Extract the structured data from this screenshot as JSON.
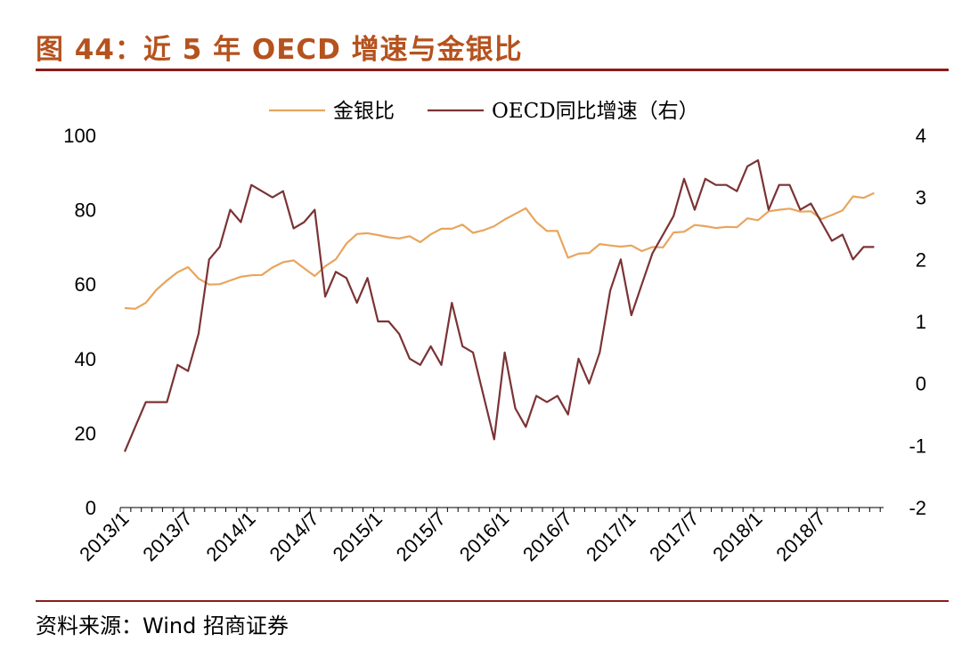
{
  "header": {
    "title": "图 44：近 5 年 OECD 增速与金银比"
  },
  "footer": {
    "source": "资料来源：Wind 招商证券"
  },
  "colors": {
    "title": "#b5521e",
    "rule": "#8b1c1c",
    "gold_silver": "#e8a55d",
    "oecd": "#7b3335"
  },
  "chart_data": {
    "type": "line",
    "title": "",
    "x_tick_labels": [
      "2013/1",
      "2013/7",
      "2014/1",
      "2014/7",
      "2015/1",
      "2015/7",
      "2016/1",
      "2016/7",
      "2017/1",
      "2017/7",
      "2018/1",
      "2018/7"
    ],
    "left_axis": {
      "ylim": [
        0,
        100
      ],
      "ticks": [
        "0",
        "20",
        "40",
        "60",
        "80",
        "100"
      ]
    },
    "right_axis": {
      "ylim": [
        -2,
        4
      ],
      "ticks": [
        "-2",
        "-1",
        "0",
        "1",
        "2",
        "3",
        "4"
      ]
    },
    "legend_position": "top-center",
    "series": [
      {
        "name": "金银比",
        "axis": "left",
        "x": [
          "2013/1",
          "2013/2",
          "2013/3",
          "2013/4",
          "2013/5",
          "2013/6",
          "2013/7",
          "2013/8",
          "2013/9",
          "2013/10",
          "2013/11",
          "2013/12",
          "2014/1",
          "2014/2",
          "2014/3",
          "2014/4",
          "2014/5",
          "2014/6",
          "2014/7",
          "2014/8",
          "2014/9",
          "2014/10",
          "2014/11",
          "2014/12",
          "2015/1",
          "2015/2",
          "2015/3",
          "2015/4",
          "2015/5",
          "2015/6",
          "2015/7",
          "2015/8",
          "2015/9",
          "2015/10",
          "2015/11",
          "2015/12",
          "2016/1",
          "2016/2",
          "2016/3",
          "2016/4",
          "2016/5",
          "2016/6",
          "2016/7",
          "2016/8",
          "2016/9",
          "2016/10",
          "2016/11",
          "2016/12",
          "2017/1",
          "2017/2",
          "2017/3",
          "2017/4",
          "2017/5",
          "2017/6",
          "2017/7",
          "2017/8",
          "2017/9",
          "2017/10",
          "2017/11",
          "2017/12",
          "2018/1",
          "2018/2",
          "2018/3",
          "2018/4",
          "2018/5",
          "2018/6",
          "2018/7",
          "2018/8",
          "2018/9",
          "2018/10",
          "2018/11",
          "2018/12"
        ],
        "values": [
          53.6,
          53.4,
          55.0,
          58.5,
          61.0,
          63.2,
          64.6,
          61.5,
          59.9,
          60.0,
          61.0,
          62.0,
          62.4,
          62.5,
          64.5,
          65.9,
          66.4,
          64.3,
          62.2,
          64.8,
          66.7,
          70.9,
          73.5,
          73.7,
          73.2,
          72.6,
          72.3,
          72.9,
          71.3,
          73.4,
          74.9,
          74.9,
          76.0,
          73.8,
          74.5,
          75.6,
          77.4,
          78.9,
          80.4,
          76.7,
          74.3,
          74.3,
          67.1,
          68.2,
          68.4,
          70.8,
          70.4,
          70.1,
          70.4,
          68.9,
          70.0,
          69.9,
          73.9,
          74.1,
          75.9,
          75.6,
          75.1,
          75.4,
          75.3,
          77.7,
          77.2,
          79.6,
          80.0,
          80.3,
          79.5,
          79.6,
          77.5,
          78.6,
          79.8,
          83.6,
          83.2,
          84.5
        ]
      },
      {
        "name": "OECD同比增速（右）",
        "axis": "right",
        "x": [
          "2013/1",
          "2013/2",
          "2013/3",
          "2013/4",
          "2013/5",
          "2013/6",
          "2013/7",
          "2013/8",
          "2013/9",
          "2013/10",
          "2013/11",
          "2013/12",
          "2014/1",
          "2014/2",
          "2014/3",
          "2014/4",
          "2014/5",
          "2014/6",
          "2014/7",
          "2014/8",
          "2014/9",
          "2014/10",
          "2014/11",
          "2014/12",
          "2015/1",
          "2015/2",
          "2015/3",
          "2015/4",
          "2015/5",
          "2015/6",
          "2015/7",
          "2015/8",
          "2015/9",
          "2015/10",
          "2015/11",
          "2015/12",
          "2016/1",
          "2016/2",
          "2016/3",
          "2016/4",
          "2016/5",
          "2016/6",
          "2016/7",
          "2016/8",
          "2016/9",
          "2016/10",
          "2016/11",
          "2016/12",
          "2017/1",
          "2017/2",
          "2017/3",
          "2017/4",
          "2017/5",
          "2017/6",
          "2017/7",
          "2017/8",
          "2017/9",
          "2017/10",
          "2017/11",
          "2017/12",
          "2018/1",
          "2018/2",
          "2018/3",
          "2018/4",
          "2018/5",
          "2018/6",
          "2018/7",
          "2018/8",
          "2018/9",
          "2018/10",
          "2018/11",
          "2018/12"
        ],
        "values": [
          -1.1,
          -0.7,
          -0.3,
          -0.3,
          -0.3,
          0.3,
          0.2,
          0.8,
          2.0,
          2.2,
          2.8,
          2.6,
          3.2,
          3.1,
          3.0,
          3.1,
          2.5,
          2.6,
          2.8,
          1.4,
          1.8,
          1.7,
          1.3,
          1.7,
          1.0,
          1.0,
          0.8,
          0.4,
          0.3,
          0.6,
          0.3,
          1.3,
          0.6,
          0.5,
          -0.2,
          -0.9,
          0.5,
          -0.4,
          -0.7,
          -0.2,
          -0.3,
          -0.2,
          -0.5,
          0.4,
          0.0,
          0.5,
          1.5,
          2.0,
          1.1,
          1.6,
          2.1,
          2.4,
          2.7,
          3.3,
          2.8,
          3.3,
          3.2,
          3.2,
          3.1,
          3.5,
          3.6,
          2.8,
          3.2,
          3.2,
          2.8,
          2.9,
          2.6,
          2.3,
          2.4,
          2.0,
          2.2,
          2.2
        ]
      }
    ]
  }
}
